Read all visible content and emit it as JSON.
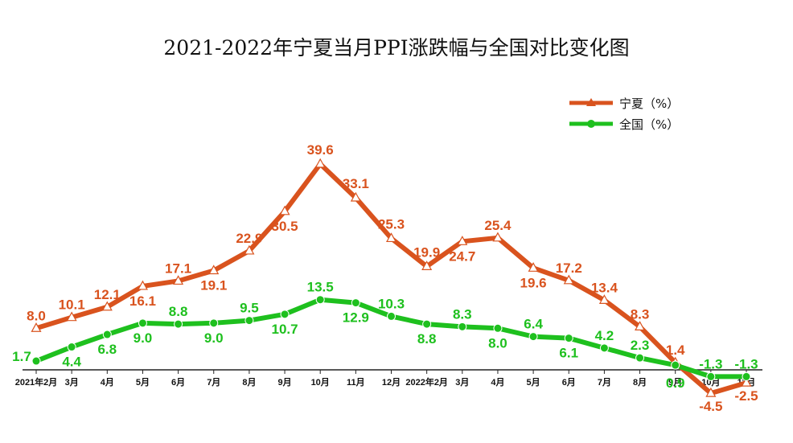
{
  "chart_data": {
    "type": "line",
    "title": "2021-2022年宁夏当月PPI涨跌幅与全国对比变化图",
    "categories": [
      "2021年2月",
      "3月",
      "4月",
      "5月",
      "6月",
      "7月",
      "8月",
      "9月",
      "10月",
      "11月",
      "12月",
      "2022年2月",
      "3月",
      "4月",
      "5月",
      "6月",
      "7月",
      "8月",
      "9月",
      "10月",
      "11月"
    ],
    "series": [
      {
        "name": "宁夏（%）",
        "color": "#d9531e",
        "marker": "triangle",
        "values": [
          8.0,
          10.1,
          12.1,
          16.1,
          17.1,
          19.1,
          22.9,
          30.5,
          39.6,
          33.1,
          25.3,
          19.9,
          24.7,
          25.4,
          19.6,
          17.2,
          13.4,
          8.3,
          1.4,
          -4.5,
          -2.5
        ]
      },
      {
        "name": "全国（%）",
        "color": "#1ec01e",
        "marker": "circle",
        "values": [
          1.7,
          4.4,
          6.8,
          9.0,
          8.8,
          9.0,
          9.5,
          10.7,
          13.5,
          12.9,
          10.3,
          8.8,
          8.3,
          8.0,
          6.4,
          6.1,
          4.2,
          2.3,
          0.9,
          -1.3,
          -1.3
        ]
      }
    ],
    "xlabel": "",
    "ylabel": "",
    "ylim": [
      -6,
      42
    ],
    "grid": false,
    "legend_position": "top-right"
  }
}
